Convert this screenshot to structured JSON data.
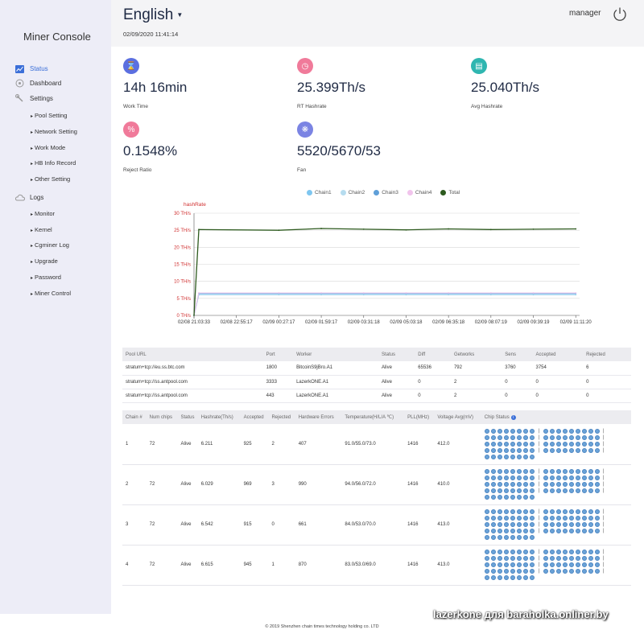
{
  "sidebar": {
    "brand": "Miner Console",
    "items": [
      {
        "label": "Status",
        "icon": "chart-icon"
      },
      {
        "label": "Dashboard",
        "icon": "gauge-icon"
      },
      {
        "label": "Settings",
        "icon": "wrench-icon"
      },
      {
        "label": "Logs",
        "icon": "cloud-icon"
      }
    ],
    "settings_sub": [
      "Pool Setting",
      "Network Setting",
      "Work Mode",
      "HB Info Record",
      "Other Setting"
    ],
    "logs_sub": [
      "Monitor",
      "Kernel",
      "Cgminer Log",
      "Upgrade",
      "Password",
      "Miner Control"
    ]
  },
  "header": {
    "language": "English",
    "datetime": "02/09/2020 11:41:14",
    "user": "manager"
  },
  "stats": [
    {
      "value": "14h 16min",
      "label": "Work Time",
      "color": "#5b6fe0",
      "icon": "hourglass-icon"
    },
    {
      "value": "25.399Th/s",
      "label": "RT Hashrate",
      "color": "#f07a9a",
      "icon": "speed-icon"
    },
    {
      "value": "25.040Th/s",
      "label": "Avg Hashrate",
      "color": "#2fb6b0",
      "icon": "server-icon"
    },
    {
      "value": "0.1548%",
      "label": "Reject Ratio",
      "color": "#f07a9a",
      "icon": "percent-icon"
    },
    {
      "value": "5520/5670/53",
      "label": "Fan",
      "color": "#7b84e3",
      "icon": "fan-icon"
    }
  ],
  "chart_data": {
    "type": "line",
    "title": "hashRate",
    "y_tick_labels": [
      "0 TH/s",
      "5 TH/s",
      "10 TH/s",
      "15 TH/s",
      "20 TH/s",
      "25 TH/s",
      "30 TH/s"
    ],
    "ylim": [
      0,
      30
    ],
    "x": [
      "02/08 21:03:33",
      "02/08 22:55:17",
      "02/09 00:27:17",
      "02/09 01:59:17",
      "02/09 03:31:18",
      "02/09 05:03:18",
      "02/09 06:35:18",
      "02/09 08:07:19",
      "02/09 09:39:19",
      "02/09 11:11:20"
    ],
    "grid": true,
    "legend_position": "top",
    "series": [
      {
        "name": "Chain1",
        "color": "#7ec6f0",
        "values": [
          0,
          6.2,
          6.2,
          6.2,
          6.2,
          6.2,
          6.2,
          6.2,
          6.2,
          6.2
        ]
      },
      {
        "name": "Chain2",
        "color": "#b6dcef",
        "values": [
          0,
          6.0,
          6.0,
          6.0,
          6.0,
          6.0,
          6.0,
          6.0,
          6.0,
          6.0
        ]
      },
      {
        "name": "Chain3",
        "color": "#5f9fd8",
        "values": [
          0,
          6.5,
          6.5,
          6.5,
          6.5,
          6.5,
          6.5,
          6.5,
          6.5,
          6.5
        ]
      },
      {
        "name": "Chain4",
        "color": "#f1c4ec",
        "values": [
          0,
          6.6,
          6.6,
          6.6,
          6.6,
          6.6,
          6.6,
          6.6,
          6.6,
          6.6
        ]
      },
      {
        "name": "Total",
        "color": "#2d5a1e",
        "values": [
          0,
          25.2,
          25.0,
          25.5,
          25.3,
          25.1,
          25.4,
          25.2,
          25.3,
          25.4
        ]
      }
    ]
  },
  "pools": {
    "headers": [
      "Pool URL",
      "Port",
      "Worker",
      "Status",
      "Diff",
      "Getworks",
      "Sens",
      "Accepted",
      "Rejected"
    ],
    "rows": [
      [
        "stratum+tcp://eu.ss.btc.com",
        "1800",
        "BitcoinS9jBro.A1",
        "Alive",
        "65536",
        "792",
        "3760",
        "3754",
        "6"
      ],
      [
        "stratum+tcp://ss.antpool.com",
        "3333",
        "LazerkONE.A1",
        "Alive",
        "0",
        "2",
        "0",
        "0",
        "0"
      ],
      [
        "stratum+tcp://ss.antpool.com",
        "443",
        "LazerkONE.A1",
        "Alive",
        "0",
        "2",
        "0",
        "0",
        "0"
      ]
    ]
  },
  "chains": {
    "headers": [
      "Chain #",
      "Num chips",
      "Status",
      "Hashrate(Th/s)",
      "Accepted",
      "Rejected",
      "Hardware Errors",
      "Temperature(H/L/A ℃)",
      "PLL(MHz)",
      "Voltage Avg(mV)",
      "Chip Status"
    ],
    "rows": [
      [
        "1",
        "72",
        "Alive",
        "6.211",
        "925",
        "2",
        "407",
        "91.0/55.0/73.0",
        "1416",
        "412.0"
      ],
      [
        "2",
        "72",
        "Alive",
        "6.029",
        "969",
        "3",
        "990",
        "94.0/56.0/72.0",
        "1416",
        "410.0"
      ],
      [
        "3",
        "72",
        "Alive",
        "6.542",
        "915",
        "0",
        "661",
        "84.0/53.0/70.0",
        "1416",
        "413.0"
      ],
      [
        "4",
        "72",
        "Alive",
        "6.615",
        "945",
        "1",
        "870",
        "83.0/53.0/69.0",
        "1416",
        "413.0"
      ]
    ]
  },
  "footer": "© 2019 Shenzhen chain times technology holding co. LTD",
  "watermark": "lazerkone для baraholka.onliner.by"
}
